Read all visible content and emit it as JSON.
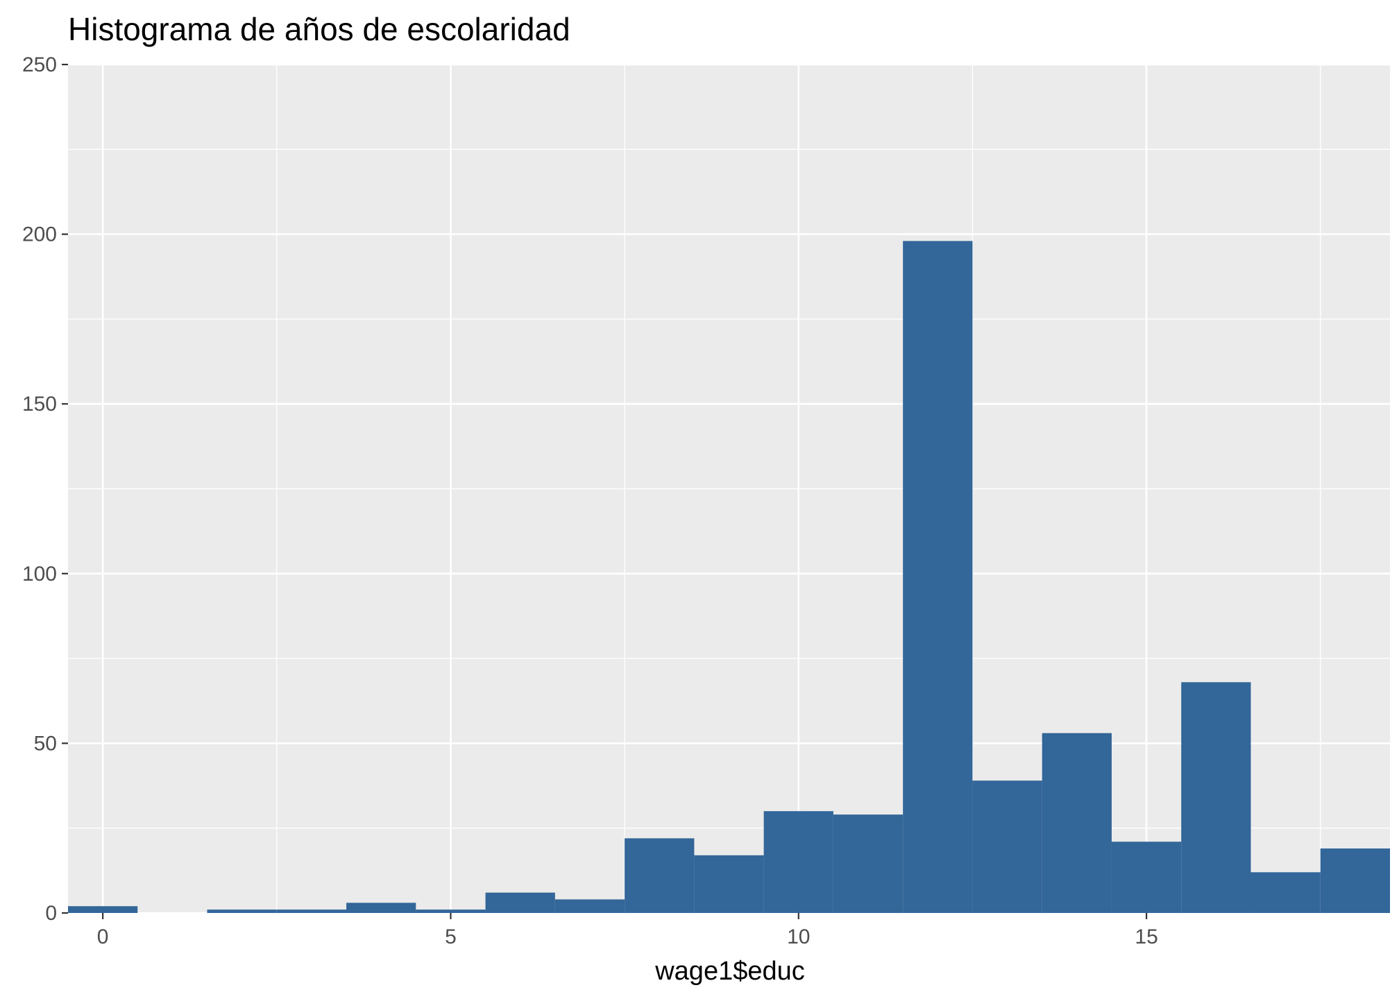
{
  "chart_data": {
    "type": "bar",
    "title": "Histograma de años de escolaridad",
    "xlabel": "wage1$educ",
    "ylabel": "",
    "xlim": [
      -0.5,
      18.5
    ],
    "ylim": [
      0,
      250
    ],
    "x_ticks": [
      0,
      5,
      10,
      15
    ],
    "y_ticks": [
      0,
      50,
      100,
      150,
      200,
      250
    ],
    "grid": true,
    "bin_width": 1,
    "bins": [
      {
        "x": 0,
        "count": 2
      },
      {
        "x": 1,
        "count": 0
      },
      {
        "x": 2,
        "count": 1
      },
      {
        "x": 3,
        "count": 1
      },
      {
        "x": 4,
        "count": 3
      },
      {
        "x": 5,
        "count": 1
      },
      {
        "x": 6,
        "count": 6
      },
      {
        "x": 7,
        "count": 4
      },
      {
        "x": 8,
        "count": 22
      },
      {
        "x": 9,
        "count": 17
      },
      {
        "x": 10,
        "count": 30
      },
      {
        "x": 11,
        "count": 29
      },
      {
        "x": 12,
        "count": 198
      },
      {
        "x": 13,
        "count": 39
      },
      {
        "x": 14,
        "count": 53
      },
      {
        "x": 15,
        "count": 21
      },
      {
        "x": 16,
        "count": 68
      },
      {
        "x": 17,
        "count": 12
      },
      {
        "x": 18,
        "count": 19
      }
    ],
    "colors": {
      "bar": "#336699",
      "panel": "#ebebeb",
      "grid": "#ffffff",
      "tick_text": "#4d4d4d",
      "tick_mark": "#333333"
    }
  }
}
